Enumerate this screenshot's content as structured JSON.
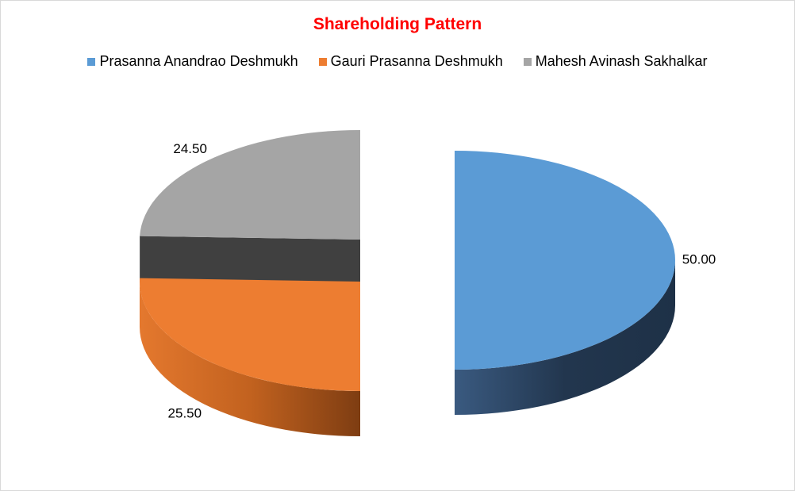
{
  "chart_data": {
    "type": "pie",
    "title": "Shareholding Pattern",
    "style": "3d-exploded",
    "legend_position": "top",
    "series": [
      {
        "name": "Prasanna Anandrao Deshmukh",
        "value": 50.0,
        "label": "50.00",
        "color": "#5b9bd5"
      },
      {
        "name": "Gauri Prasanna Deshmukh",
        "value": 25.5,
        "label": "25.50",
        "color": "#ed7d31"
      },
      {
        "name": "Mahesh Avinash Sakhalkar",
        "value": 24.5,
        "label": "24.50",
        "color": "#a5a5a5"
      }
    ]
  }
}
